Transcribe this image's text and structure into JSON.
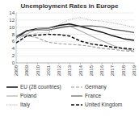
{
  "chart_data": {
    "type": "line",
    "title": "Unemployment Rates in Europe",
    "x": [
      2008,
      2009,
      2010,
      2011,
      2012,
      2013,
      2014,
      2015,
      2016,
      2017,
      2018,
      2019
    ],
    "xlim": [
      2008,
      2019
    ],
    "xticks": [
      2008,
      2009,
      2010,
      2011,
      2012,
      2013,
      2014,
      2015,
      2016,
      2017,
      2018,
      2019
    ],
    "ylim": [
      0,
      14
    ],
    "yticks": [
      0,
      2,
      4,
      6,
      8,
      10,
      12,
      14
    ],
    "grid": true,
    "legend": "bottom",
    "series": [
      {
        "name": "EU (28 countries)",
        "color": "#111111",
        "line_style": "solid",
        "values": [
          7.0,
          9.0,
          9.6,
          9.7,
          10.5,
          10.9,
          10.2,
          9.4,
          8.6,
          7.6,
          6.8,
          6.3
        ]
      },
      {
        "name": "Germany",
        "color": "#999999",
        "line_style": "dashed",
        "values": [
          7.4,
          7.6,
          7.0,
          5.8,
          5.4,
          5.2,
          5.0,
          4.6,
          4.1,
          3.8,
          3.4,
          3.2
        ]
      },
      {
        "name": "Poland",
        "color": "#aaaaaa",
        "line_style": "solid",
        "values": [
          7.1,
          8.1,
          9.6,
          9.7,
          10.1,
          10.3,
          9.0,
          7.5,
          6.2,
          4.9,
          3.9,
          3.3
        ]
      },
      {
        "name": "France",
        "color": "#555555",
        "line_style": "solid",
        "values": [
          7.4,
          9.1,
          9.3,
          9.2,
          9.8,
          10.3,
          10.3,
          10.4,
          10.1,
          9.4,
          9.0,
          8.5
        ]
      },
      {
        "name": "Italy",
        "color": "#aaaaaa",
        "line_style": "dotted",
        "values": [
          6.7,
          7.7,
          8.4,
          8.4,
          10.7,
          12.2,
          12.7,
          11.9,
          11.7,
          11.2,
          10.6,
          10.0
        ]
      },
      {
        "name": "United Kingdom",
        "color": "#111111",
        "line_style": "dashed",
        "values": [
          5.6,
          7.6,
          7.8,
          8.0,
          7.9,
          7.5,
          6.1,
          5.3,
          4.9,
          4.4,
          4.1,
          3.8
        ]
      }
    ]
  }
}
